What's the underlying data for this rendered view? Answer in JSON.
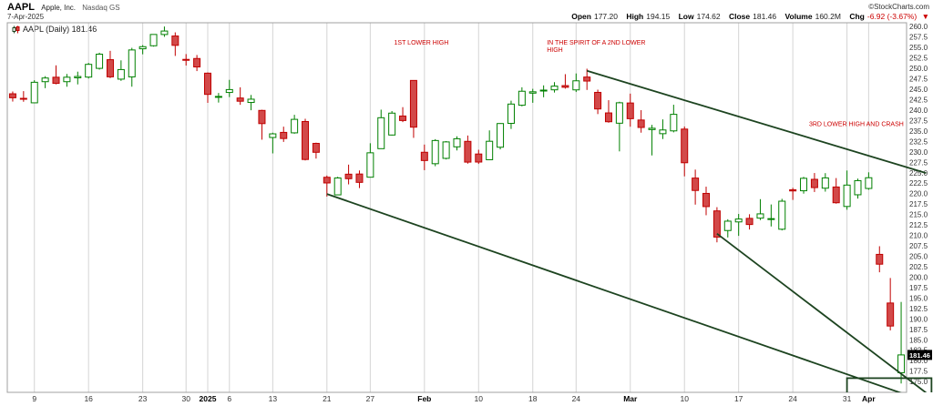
{
  "header": {
    "symbol": "AAPL",
    "company": "Apple, Inc.",
    "exchange": "Nasdaq GS",
    "date": "7-Apr-2025",
    "copyright": "©StockCharts.com",
    "quote": {
      "open_label": "Open",
      "open": "177.20",
      "high_label": "High",
      "high": "194.15",
      "low_label": "Low",
      "low": "174.62",
      "close_label": "Close",
      "close": "181.46",
      "volume_label": "Volume",
      "volume": "160.2M",
      "chg_label": "Chg",
      "chg": "-6.92 (-3.67%)",
      "chg_dir": "▼"
    }
  },
  "legend": {
    "label": "AAPL (Daily) 181.46"
  },
  "chart_data": {
    "type": "candlestick",
    "symbol": "AAPL",
    "timeframe": "Daily",
    "last_price": 181.46,
    "y_axis": {
      "min": 172.5,
      "max": 261.0,
      "tick_min": 175.0,
      "tick_max": 260.0,
      "step": 2.5,
      "side": "right"
    },
    "grid": "weekly-vertical",
    "colors": {
      "up": "#008000",
      "up_fill": "#ffffff",
      "down": "#c00000",
      "down_fill": "#d24949",
      "trendline": "#1d4420",
      "annotation": "#cc0000",
      "grid": "#d4d4d4",
      "border": "#a0a0a0",
      "axis_text": "#333333",
      "tag_bg": "#000000",
      "tag_text": "#ffffff"
    },
    "dates": [
      "2024-12-05",
      "2024-12-06",
      "2024-12-09",
      "2024-12-10",
      "2024-12-11",
      "2024-12-12",
      "2024-12-13",
      "2024-12-16",
      "2024-12-17",
      "2024-12-18",
      "2024-12-19",
      "2024-12-20",
      "2024-12-23",
      "2024-12-24",
      "2024-12-26",
      "2024-12-27",
      "2024-12-30",
      "2024-12-31",
      "2025-01-02",
      "2025-01-03",
      "2025-01-06",
      "2025-01-07",
      "2025-01-08",
      "2025-01-10",
      "2025-01-13",
      "2025-01-14",
      "2025-01-15",
      "2025-01-16",
      "2025-01-17",
      "2025-01-21",
      "2025-01-22",
      "2025-01-23",
      "2025-01-24",
      "2025-01-27",
      "2025-01-28",
      "2025-01-29",
      "2025-01-30",
      "2025-01-31",
      "2025-02-03",
      "2025-02-04",
      "2025-02-05",
      "2025-02-06",
      "2025-02-07",
      "2025-02-10",
      "2025-02-11",
      "2025-02-12",
      "2025-02-13",
      "2025-02-14",
      "2025-02-18",
      "2025-02-19",
      "2025-02-20",
      "2025-02-21",
      "2025-02-24",
      "2025-02-25",
      "2025-02-26",
      "2025-02-27",
      "2025-02-28",
      "2025-03-03",
      "2025-03-04",
      "2025-03-05",
      "2025-03-06",
      "2025-03-07",
      "2025-03-10",
      "2025-03-11",
      "2025-03-12",
      "2025-03-13",
      "2025-03-14",
      "2025-03-17",
      "2025-03-18",
      "2025-03-19",
      "2025-03-20",
      "2025-03-21",
      "2025-03-24",
      "2025-03-25",
      "2025-03-26",
      "2025-03-27",
      "2025-03-28",
      "2025-03-31",
      "2025-04-01",
      "2025-04-02",
      "2025-04-03",
      "2025-04-04",
      "2025-04-07"
    ],
    "ohlc": [
      [
        243.99,
        244.54,
        242.13,
        243.04
      ],
      [
        242.9,
        244.63,
        242.08,
        242.84
      ],
      [
        241.83,
        247.24,
        241.75,
        246.75
      ],
      [
        246.89,
        248.21,
        245.34,
        247.77
      ],
      [
        247.96,
        250.8,
        246.26,
        246.49
      ],
      [
        246.89,
        248.74,
        245.68,
        247.96
      ],
      [
        247.82,
        249.29,
        246.24,
        248.13
      ],
      [
        247.99,
        251.38,
        247.65,
        251.04
      ],
      [
        250.08,
        253.83,
        249.78,
        253.48
      ],
      [
        252.16,
        254.28,
        247.74,
        248.05
      ],
      [
        247.5,
        252.0,
        247.09,
        249.79
      ],
      [
        248.04,
        255.0,
        245.69,
        254.49
      ],
      [
        254.77,
        255.65,
        253.45,
        255.27
      ],
      [
        255.49,
        258.21,
        255.29,
        258.2
      ],
      [
        258.19,
        260.1,
        257.63,
        259.02
      ],
      [
        257.83,
        258.7,
        253.06,
        255.59
      ],
      [
        252.23,
        253.5,
        250.75,
        252.2
      ],
      [
        252.44,
        253.28,
        249.43,
        250.42
      ],
      [
        248.93,
        249.1,
        241.82,
        243.85
      ],
      [
        243.36,
        244.18,
        241.89,
        243.36
      ],
      [
        244.31,
        247.33,
        243.2,
        245.0
      ],
      [
        242.98,
        245.55,
        241.35,
        242.21
      ],
      [
        241.92,
        243.71,
        240.05,
        242.7
      ],
      [
        240.01,
        240.16,
        233.0,
        236.85
      ],
      [
        233.53,
        234.67,
        229.72,
        234.4
      ],
      [
        234.75,
        236.12,
        232.47,
        233.28
      ],
      [
        234.64,
        238.96,
        234.43,
        237.87
      ],
      [
        237.35,
        238.01,
        228.03,
        228.26
      ],
      [
        232.12,
        232.29,
        228.48,
        229.98
      ],
      [
        224.0,
        224.42,
        219.38,
        222.64
      ],
      [
        219.79,
        224.12,
        219.79,
        223.83
      ],
      [
        224.74,
        227.03,
        222.3,
        223.66
      ],
      [
        224.78,
        225.63,
        221.41,
        222.78
      ],
      [
        224.02,
        232.15,
        223.98,
        229.86
      ],
      [
        230.85,
        240.19,
        230.81,
        238.26
      ],
      [
        234.12,
        239.86,
        234.01,
        239.36
      ],
      [
        238.67,
        240.79,
        237.21,
        237.59
      ],
      [
        247.19,
        247.19,
        233.44,
        236.0
      ],
      [
        229.99,
        231.83,
        225.7,
        228.01
      ],
      [
        227.25,
        233.13,
        226.65,
        232.8
      ],
      [
        228.53,
        232.67,
        228.27,
        232.47
      ],
      [
        231.29,
        233.8,
        230.43,
        233.22
      ],
      [
        232.6,
        234.0,
        227.26,
        227.63
      ],
      [
        229.57,
        230.59,
        227.2,
        227.65
      ],
      [
        228.2,
        235.23,
        228.13,
        232.62
      ],
      [
        231.2,
        236.96,
        230.68,
        236.87
      ],
      [
        236.91,
        242.34,
        235.57,
        241.53
      ],
      [
        241.25,
        245.55,
        240.99,
        244.6
      ],
      [
        244.15,
        245.18,
        241.84,
        244.47
      ],
      [
        244.66,
        246.01,
        243.16,
        244.87
      ],
      [
        244.94,
        246.78,
        244.29,
        245.83
      ],
      [
        245.95,
        248.69,
        245.22,
        245.55
      ],
      [
        244.93,
        248.86,
        244.42,
        247.1
      ],
      [
        248.0,
        250.0,
        244.91,
        247.04
      ],
      [
        244.33,
        244.98,
        239.13,
        240.36
      ],
      [
        239.41,
        242.46,
        237.06,
        237.3
      ],
      [
        236.95,
        242.09,
        230.2,
        241.84
      ],
      [
        241.79,
        244.03,
        236.11,
        238.03
      ],
      [
        237.71,
        240.07,
        234.68,
        235.93
      ],
      [
        235.42,
        236.55,
        229.23,
        235.74
      ],
      [
        234.44,
        237.86,
        233.16,
        235.33
      ],
      [
        235.11,
        241.37,
        234.76,
        239.07
      ],
      [
        235.54,
        236.16,
        224.22,
        227.48
      ],
      [
        223.81,
        225.84,
        217.45,
        220.84
      ],
      [
        220.14,
        221.75,
        214.91,
        216.98
      ],
      [
        215.95,
        216.84,
        208.42,
        209.68
      ],
      [
        211.25,
        213.95,
        209.58,
        213.49
      ],
      [
        213.31,
        215.22,
        209.97,
        214.0
      ],
      [
        214.16,
        215.15,
        211.49,
        212.69
      ],
      [
        214.22,
        218.76,
        213.75,
        215.24
      ],
      [
        213.99,
        217.49,
        212.22,
        214.1
      ],
      [
        211.56,
        218.84,
        211.28,
        218.27
      ],
      [
        221.0,
        221.48,
        218.58,
        220.73
      ],
      [
        220.77,
        224.1,
        220.08,
        223.75
      ],
      [
        223.51,
        225.02,
        220.47,
        221.53
      ],
      [
        221.39,
        224.99,
        220.56,
        223.85
      ],
      [
        221.67,
        223.81,
        217.68,
        217.9
      ],
      [
        217.01,
        225.62,
        216.23,
        222.13
      ],
      [
        219.81,
        223.68,
        218.9,
        223.19
      ],
      [
        221.32,
        225.19,
        221.02,
        223.89
      ],
      [
        205.54,
        207.49,
        201.25,
        203.19
      ],
      [
        193.89,
        199.88,
        187.34,
        188.38
      ],
      [
        177.2,
        194.15,
        174.62,
        181.46
      ]
    ],
    "x_ticks": [
      {
        "i": 2,
        "label": "9",
        "bold": false
      },
      {
        "i": 7,
        "label": "16",
        "bold": false
      },
      {
        "i": 12,
        "label": "23",
        "bold": false
      },
      {
        "i": 16,
        "label": "30",
        "bold": false
      },
      {
        "i": 18,
        "label": "2025",
        "bold": true
      },
      {
        "i": 20,
        "label": "6",
        "bold": false
      },
      {
        "i": 24,
        "label": "13",
        "bold": false
      },
      {
        "i": 29,
        "label": "21",
        "bold": false
      },
      {
        "i": 33,
        "label": "27",
        "bold": false
      },
      {
        "i": 38,
        "label": "Feb",
        "bold": true
      },
      {
        "i": 43,
        "label": "10",
        "bold": false
      },
      {
        "i": 48,
        "label": "18",
        "bold": false
      },
      {
        "i": 52,
        "label": "24",
        "bold": false
      },
      {
        "i": 57,
        "label": "Mar",
        "bold": true
      },
      {
        "i": 62,
        "label": "10",
        "bold": false
      },
      {
        "i": 67,
        "label": "17",
        "bold": false
      },
      {
        "i": 72,
        "label": "24",
        "bold": false
      },
      {
        "i": 77,
        "label": "31",
        "bold": false
      },
      {
        "i": 79,
        "label": "Apr",
        "bold": true
      }
    ],
    "annotations": {
      "texts": [
        {
          "i": 35.2,
          "price": 255.8,
          "lines": [
            "1ST LOWER HIGH"
          ]
        },
        {
          "i": 49.3,
          "price": 255.8,
          "lines": [
            "IN THE SPIRIT OF A 2ND LOWER",
            "HIGH"
          ]
        },
        {
          "i": 73.5,
          "price": 236.3,
          "lines": [
            "3RD LOWER HIGH AND CRASH"
          ]
        }
      ],
      "trendlines": [
        {
          "x1": 29,
          "p1": 220.0,
          "x2": 82.6,
          "p2": 171.8
        },
        {
          "x1": 53,
          "p1": 249.5,
          "x2": 84.3,
          "p2": 225.0
        },
        {
          "x1": 65,
          "p1": 210.5,
          "x2": 84.5,
          "p2": 172.0
        }
      ],
      "box": {
        "x1": 77.0,
        "p1": 175.9,
        "x2": 84.8,
        "p2": 171.0
      },
      "price_tag": "181.46"
    }
  }
}
